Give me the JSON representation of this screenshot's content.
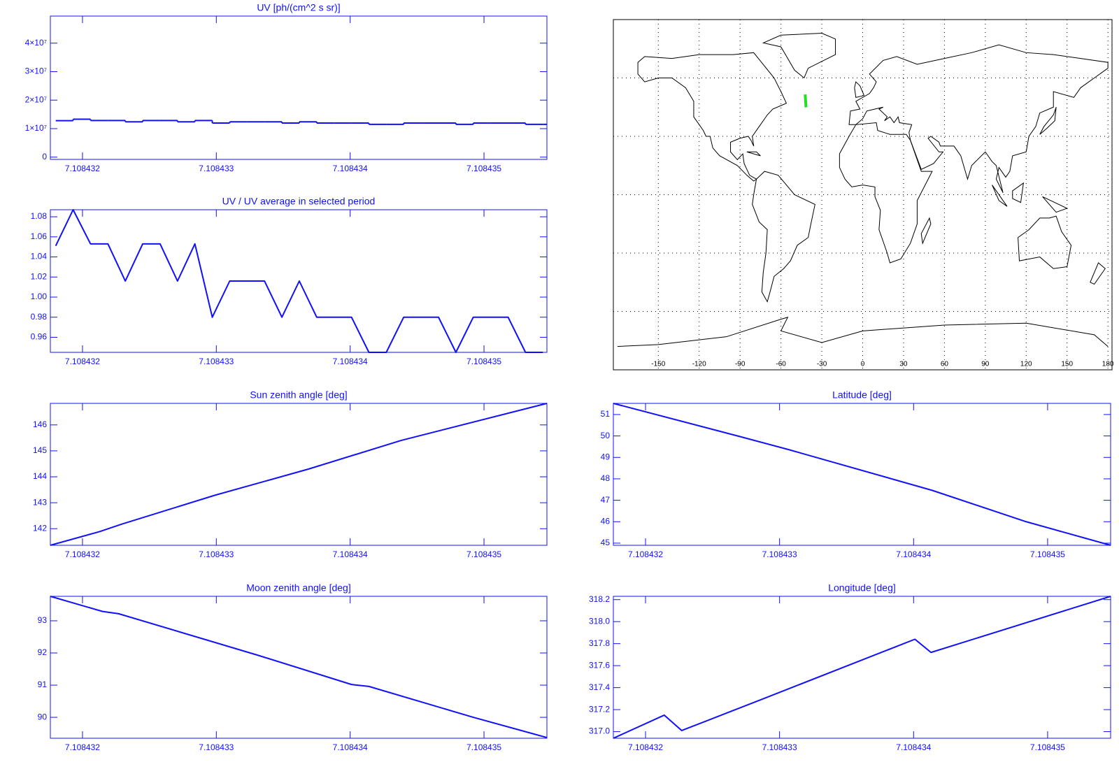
{
  "chart_data": [
    {
      "type": "step",
      "title": "UV [ph/(cm^2 s sr)]",
      "color": "#1010ff",
      "x": [
        7.1084318,
        7.10843193,
        7.10843206,
        7.10843219,
        7.10843232,
        7.10843245,
        7.10843258,
        7.10843271,
        7.10843284,
        7.10843297,
        7.1084331,
        7.10843323,
        7.10843336,
        7.10843349,
        7.10843362,
        7.10843375,
        7.10843388,
        7.10843401,
        7.10843414,
        7.10843427,
        7.1084344,
        7.10843453,
        7.10843466,
        7.10843479,
        7.10843492,
        7.10843505,
        7.10843518,
        7.10843531,
        7.10843544
      ],
      "values": [
        12800000,
        13300000,
        12850000,
        12850000,
        12400000,
        12850000,
        12850000,
        12400000,
        12850000,
        11950000,
        12400000,
        12400000,
        12400000,
        11950000,
        12400000,
        11950000,
        11950000,
        11950000,
        11500000,
        11500000,
        11950000,
        11950000,
        11950000,
        11500000,
        11950000,
        11950000,
        11950000,
        11500000,
        11500000
      ],
      "xlim": [
        7.10843176,
        7.10843547
      ],
      "xticks": [
        7.108432,
        7.108433,
        7.108434,
        7.108435
      ],
      "ylim": [
        -800000,
        49500000
      ],
      "yticks": [
        0,
        {
          "value": 10000000,
          "label": "1×10⁷"
        },
        {
          "value": 20000000,
          "label": "2×10⁷"
        },
        {
          "value": 30000000,
          "label": "3×10⁷"
        },
        {
          "value": 40000000,
          "label": "4×10⁷"
        }
      ]
    },
    {
      "type": "line",
      "title": "UV / UV average in selected period",
      "color": "#1010ff",
      "x": [
        7.1084318,
        7.10843193,
        7.10843206,
        7.10843219,
        7.10843232,
        7.10843245,
        7.10843258,
        7.10843271,
        7.10843284,
        7.10843297,
        7.1084331,
        7.10843323,
        7.10843336,
        7.10843349,
        7.10843362,
        7.10843375,
        7.10843388,
        7.10843401,
        7.10843414,
        7.10843427,
        7.1084344,
        7.10843453,
        7.10843466,
        7.10843479,
        7.10843492,
        7.10843505,
        7.10843518,
        7.10843531,
        7.10843544
      ],
      "values": [
        1.051,
        1.087,
        1.053,
        1.053,
        1.016,
        1.053,
        1.053,
        1.016,
        1.053,
        0.98,
        1.016,
        1.016,
        1.016,
        0.98,
        1.016,
        0.98,
        0.98,
        0.98,
        0.945,
        0.945,
        0.98,
        0.98,
        0.98,
        0.945,
        0.98,
        0.98,
        0.98,
        0.945,
        0.945
      ],
      "xlim": [
        7.10843176,
        7.10843547
      ],
      "xticks": [
        7.108432,
        7.108433,
        7.108434,
        7.108435
      ],
      "ylim": [
        0.945,
        1.087
      ],
      "yticks": [
        0.96,
        0.98,
        {
          "value": 1,
          "label": "1.00"
        },
        1.02,
        1.04,
        1.06,
        1.08
      ]
    },
    {
      "type": "map",
      "xlim": [
        -183,
        183
      ],
      "ylim": [
        -90,
        90
      ],
      "xticks": [
        -150,
        -120,
        -90,
        -60,
        -30,
        0,
        30,
        60,
        90,
        120,
        150,
        180
      ],
      "ygrid": [
        -60,
        -30,
        0,
        30,
        60
      ],
      "track": {
        "color": "#22dd22",
        "lon": [
          -42.2,
          -41.6
        ],
        "lat": [
          51.5,
          44.9
        ]
      }
    },
    {
      "type": "line",
      "title": "Sun zenith angle [deg]",
      "color": "#1010ff",
      "x": [
        7.10843176,
        7.10843213,
        7.10843229,
        7.10843299,
        7.10843369,
        7.10843438,
        7.10843547
      ],
      "values": [
        141.36,
        141.89,
        142.17,
        143.29,
        144.3,
        145.4,
        146.83
      ],
      "xlim": [
        7.10843176,
        7.10843547
      ],
      "xticks": [
        7.108432,
        7.108433,
        7.108434,
        7.108435
      ],
      "ylim": [
        141.36,
        146.83
      ],
      "yticks": [
        142,
        143,
        144,
        145,
        146
      ]
    },
    {
      "type": "line",
      "title": "Latitude [deg]",
      "color": "#1010ff",
      "x": [
        7.10843176,
        7.1084327,
        7.10843307,
        7.10843414,
        7.10843484,
        7.10843547
      ],
      "values": [
        51.52,
        49.98,
        49.36,
        47.46,
        46.0,
        44.9
      ],
      "xlim": [
        7.10843176,
        7.10843547
      ],
      "xticks": [
        7.108432,
        7.108433,
        7.108434,
        7.108435
      ],
      "ylim": [
        44.9,
        51.52
      ],
      "yticks": [
        45,
        46,
        47,
        48,
        49,
        50,
        51
      ]
    },
    {
      "type": "line",
      "title": "Moon zenith angle [deg]",
      "color": "#1010ff",
      "x": [
        7.10843176,
        7.10843215,
        7.10843227,
        7.10843331,
        7.10843401,
        7.10843414,
        7.10843492,
        7.10843547
      ],
      "values": [
        93.76,
        93.29,
        93.22,
        91.93,
        91.02,
        90.96,
        90.0,
        89.37
      ],
      "xlim": [
        7.10843176,
        7.10843547
      ],
      "xticks": [
        7.108432,
        7.108433,
        7.108434,
        7.108435
      ],
      "ylim": [
        89.35,
        93.76
      ],
      "yticks": [
        90,
        91,
        92,
        93
      ]
    },
    {
      "type": "line",
      "title": "Longitude [deg]",
      "color": "#1010ff",
      "x": [
        7.10843176,
        7.10843214,
        7.10843227,
        7.10843286,
        7.10843401,
        7.10843413,
        7.10843547
      ],
      "values": [
        316.94,
        317.15,
        317.01,
        317.29,
        317.84,
        317.72,
        318.23
      ],
      "xlim": [
        7.10843176,
        7.10843547
      ],
      "xticks": [
        7.108432,
        7.108433,
        7.108434,
        7.108435
      ],
      "ylim": [
        316.94,
        318.23
      ],
      "yticks": [
        {
          "value": 317,
          "label": "317.0"
        },
        317.2,
        317.4,
        317.6,
        317.8,
        {
          "value": 318,
          "label": "318.0"
        },
        318.2
      ]
    }
  ]
}
